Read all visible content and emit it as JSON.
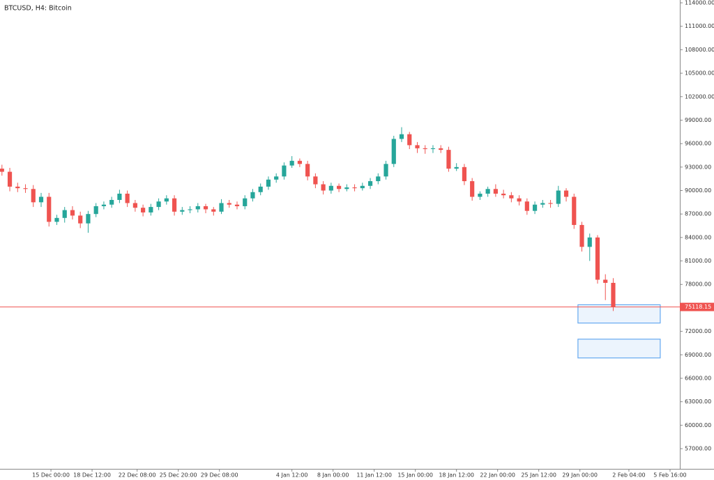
{
  "chart_data": {
    "type": "candlestick",
    "title": "BTCUSD, H4: Bitcoin",
    "up_color": "#26a69a",
    "down_color": "#ef5350",
    "grid": false,
    "xlim": [
      -26,
      321
    ],
    "ylim": [
      54420,
      114360
    ],
    "xticks": [
      {
        "value": 0,
        "label": "15 Dec 00:00"
      },
      {
        "value": 21,
        "label": "18 Dec 12:00"
      },
      {
        "value": 44,
        "label": "22 Dec 08:00"
      },
      {
        "value": 65,
        "label": "25 Dec 20:00"
      },
      {
        "value": 86,
        "label": "29 Dec 08:00"
      },
      {
        "value": 123,
        "label": "4 Jan 12:00"
      },
      {
        "value": 144,
        "label": "8 Jan 00:00"
      },
      {
        "value": 165,
        "label": "11 Jan 12:00"
      },
      {
        "value": 186,
        "label": "15 Jan 00:00"
      },
      {
        "value": 207,
        "label": "18 Jan 12:00"
      },
      {
        "value": 228,
        "label": "22 Jan 00:00"
      },
      {
        "value": 249,
        "label": "25 Jan 12:00"
      },
      {
        "value": 270,
        "label": "29 Jan 00:00"
      },
      {
        "value": 295,
        "label": "2 Feb 04:00"
      },
      {
        "value": 316,
        "label": "5 Feb 16:00"
      }
    ],
    "yticks": [
      {
        "value": 57000,
        "label": "57000.00"
      },
      {
        "value": 60000,
        "label": "60000.00"
      },
      {
        "value": 63000,
        "label": "63000.00"
      },
      {
        "value": 66000,
        "label": "66000.00"
      },
      {
        "value": 69000,
        "label": "69000.00"
      },
      {
        "value": 72000,
        "label": "72000.00"
      },
      {
        "value": 78000,
        "label": "78000.00"
      },
      {
        "value": 81000,
        "label": "81000.00"
      },
      {
        "value": 84000,
        "label": "84000.00"
      },
      {
        "value": 87000,
        "label": "87000.00"
      },
      {
        "value": 90000,
        "label": "90000.00"
      },
      {
        "value": 93000,
        "label": "93000.00"
      },
      {
        "value": 96000,
        "label": "96000.00"
      },
      {
        "value": 99000,
        "label": "99000.00"
      },
      {
        "value": 102000,
        "label": "102000.00"
      },
      {
        "value": 105000,
        "label": "105000.00"
      },
      {
        "value": 108000,
        "label": "108000.00"
      },
      {
        "value": 111000,
        "label": "111000.00"
      },
      {
        "value": 114000,
        "label": "114000.00"
      }
    ],
    "current_price": 75118.15,
    "current_price_color": "#ef5350",
    "zones": [
      {
        "x": [
          269,
          311
        ],
        "y": [
          73060,
          75400
        ],
        "color": "#64a8f0"
      },
      {
        "x": [
          269,
          311
        ],
        "y": [
          68600,
          71000
        ],
        "color": "#64a8f0"
      }
    ],
    "x": [
      -25,
      -21,
      -17,
      -13,
      -9,
      -5,
      -1,
      3,
      7,
      11,
      15,
      19,
      23,
      27,
      31,
      35,
      39,
      43,
      47,
      51,
      55,
      59,
      63,
      67,
      71,
      75,
      79,
      83,
      87,
      91,
      95,
      99,
      103,
      107,
      111,
      115,
      119,
      123,
      127,
      131,
      135,
      139,
      143,
      147,
      151,
      155,
      159,
      163,
      167,
      171,
      175,
      179,
      183,
      187,
      191,
      195,
      199,
      203,
      207,
      211,
      215,
      219,
      223,
      227,
      231,
      235,
      239,
      243,
      247,
      251,
      255,
      259,
      263,
      267,
      271,
      275,
      279,
      283,
      287
    ],
    "open": [
      92800,
      92400,
      90500,
      90300,
      90200,
      88500,
      89200,
      86000,
      86500,
      87500,
      86800,
      85800,
      87000,
      88000,
      88200,
      88800,
      89600,
      88400,
      87800,
      87200,
      87900,
      88600,
      89000,
      87300,
      87500,
      87600,
      88000,
      87600,
      87300,
      88400,
      88200,
      88000,
      89000,
      89800,
      90500,
      91400,
      91800,
      93200,
      93800,
      93400,
      91800,
      90800,
      90000,
      90600,
      90200,
      90400,
      90300,
      90600,
      91200,
      91800,
      93400,
      96600,
      97200,
      95800,
      95400,
      95300,
      95400,
      95200,
      92800,
      93000,
      91200,
      89200,
      89600,
      90200,
      89600,
      89400,
      89000,
      88600,
      87400,
      88200,
      88400,
      88300,
      90000,
      89200,
      85600,
      82800,
      84000,
      78600,
      78200
    ],
    "high": [
      93300,
      92900,
      91000,
      90800,
      90700,
      89700,
      89700,
      86900,
      87900,
      88000,
      87300,
      87400,
      88400,
      88600,
      89200,
      90100,
      90000,
      88800,
      88200,
      88300,
      89000,
      89400,
      89400,
      87900,
      88000,
      88400,
      88300,
      87900,
      88900,
      88800,
      88600,
      89400,
      90200,
      90900,
      91800,
      92200,
      93600,
      94400,
      94100,
      93800,
      92200,
      91200,
      91000,
      90900,
      90800,
      90800,
      91000,
      91600,
      92200,
      93800,
      97000,
      98100,
      97500,
      96200,
      95800,
      95800,
      95800,
      95600,
      93500,
      93400,
      91600,
      89900,
      90500,
      90800,
      90100,
      89800,
      89400,
      89000,
      88600,
      88800,
      88800,
      90600,
      90300,
      89600,
      86000,
      84500,
      84300,
      79300,
      78800
    ],
    "low": [
      91900,
      89900,
      89800,
      89700,
      87900,
      87900,
      85400,
      85600,
      85900,
      86300,
      85200,
      84600,
      86600,
      87600,
      87800,
      88400,
      87900,
      87300,
      86700,
      86800,
      87500,
      88200,
      86800,
      86900,
      87100,
      87200,
      87100,
      86800,
      87000,
      87800,
      87600,
      87600,
      88600,
      89400,
      90100,
      91000,
      91400,
      92900,
      93000,
      91300,
      90300,
      89500,
      89600,
      89800,
      89900,
      89900,
      90000,
      90200,
      90800,
      91400,
      93000,
      96200,
      95300,
      94800,
      94700,
      94800,
      94800,
      92400,
      92500,
      90700,
      88700,
      88800,
      89200,
      89200,
      89000,
      88500,
      88100,
      86900,
      87000,
      87800,
      87800,
      87900,
      88600,
      85100,
      82200,
      81000,
      78100,
      76000,
      74600
    ],
    "close": [
      92400,
      90500,
      90300,
      90200,
      88500,
      89200,
      86000,
      86500,
      87500,
      86800,
      85800,
      87000,
      88000,
      88200,
      88800,
      89600,
      88400,
      87800,
      87200,
      87900,
      88600,
      89000,
      87300,
      87500,
      87600,
      88000,
      87600,
      87300,
      88400,
      88200,
      88000,
      89000,
      89800,
      90500,
      91400,
      91800,
      93200,
      93800,
      93400,
      91800,
      90800,
      90000,
      90600,
      90200,
      90400,
      90300,
      90600,
      91200,
      91800,
      93400,
      96600,
      97200,
      95800,
      95400,
      95300,
      95400,
      95200,
      92800,
      93000,
      91200,
      89200,
      89600,
      90200,
      89600,
      89400,
      89000,
      88600,
      87400,
      88200,
      88400,
      88300,
      90000,
      89200,
      85600,
      82800,
      84000,
      78600,
      78200,
      75118.15
    ]
  }
}
